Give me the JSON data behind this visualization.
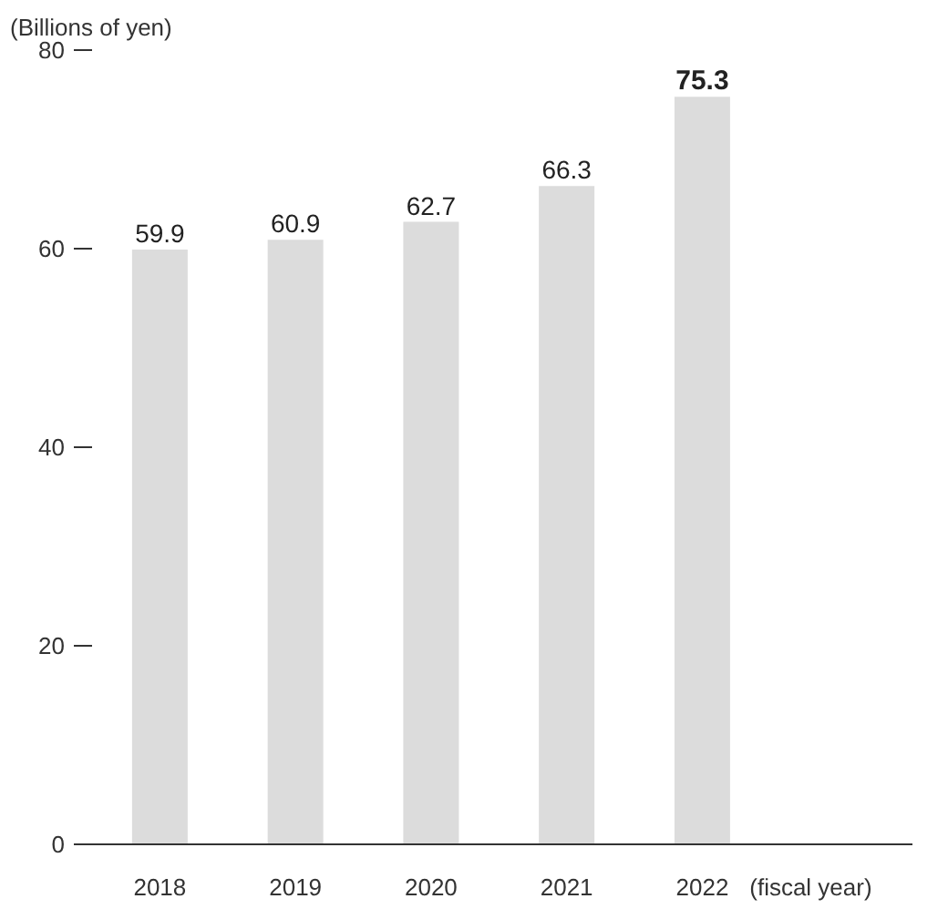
{
  "chart_data": {
    "type": "bar",
    "ylabel": "(Billions of yen)",
    "xlabel": "(fiscal year)",
    "categories": [
      "2018",
      "2019",
      "2020",
      "2021",
      "2022"
    ],
    "values": [
      59.9,
      60.9,
      62.7,
      66.3,
      75.3
    ],
    "color": "#dcdcdc",
    "ylim": [
      0,
      80
    ],
    "yticks": [
      0,
      20,
      40,
      60,
      80
    ],
    "data_labels": true
  }
}
